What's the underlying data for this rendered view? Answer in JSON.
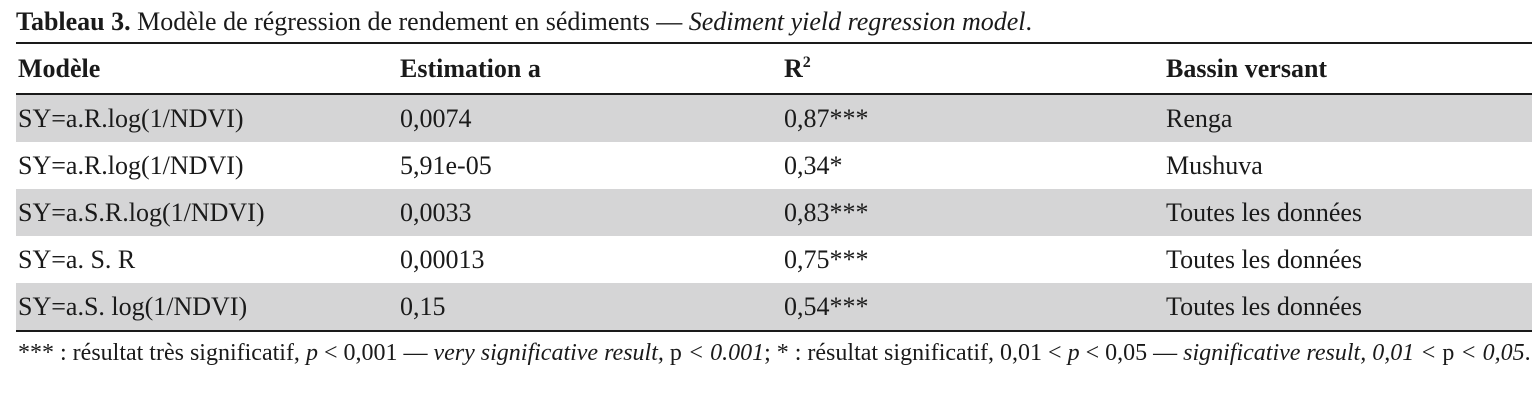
{
  "caption": {
    "label": "Tableau 3.",
    "title_fr": " Modèle de régression de rendement en sédiments — ",
    "title_en": "Sediment yield regression model",
    "end": "."
  },
  "table": {
    "headers": {
      "model": "Modèle",
      "estimate": "Estimation a",
      "r2_base": "R",
      "r2_sup": "2",
      "basin": "Bassin versant"
    },
    "rows": [
      {
        "model": "SY=a.R.log(1/NDVI)",
        "estimate": "0,0074",
        "r2": "0,87***",
        "basin": "Renga"
      },
      {
        "model": "SY=a.R.log(1/NDVI)",
        "estimate": "5,91e-05",
        "r2": "0,34*",
        "basin": "Mushuva"
      },
      {
        "model": "SY=a.S.R.log(1/NDVI)",
        "estimate": "0,0033",
        "r2": "0,83***",
        "basin": "Toutes les données"
      },
      {
        "model": "SY=a. S. R",
        "estimate": "0,00013",
        "r2": "0,75***",
        "basin": "Toutes les données"
      },
      {
        "model": "SY=a.S. log(1/NDVI)",
        "estimate": "0,15",
        "r2": "0,54***",
        "basin": "Toutes les données"
      }
    ]
  },
  "footnote": {
    "s1": "*** : résultat très significatif, ",
    "s2": "p",
    "s3": " < 0,001 — ",
    "s4": "very significative result,",
    "s5": " p ",
    "s6": "< 0.001",
    "s7": "; * : résultat significatif, 0,01 < ",
    "s8": "p",
    "s9": " < 0,05 — ",
    "s10": "significative result, 0,01 <",
    "s11": " p ",
    "s12": "< 0,05",
    "s13": "."
  }
}
